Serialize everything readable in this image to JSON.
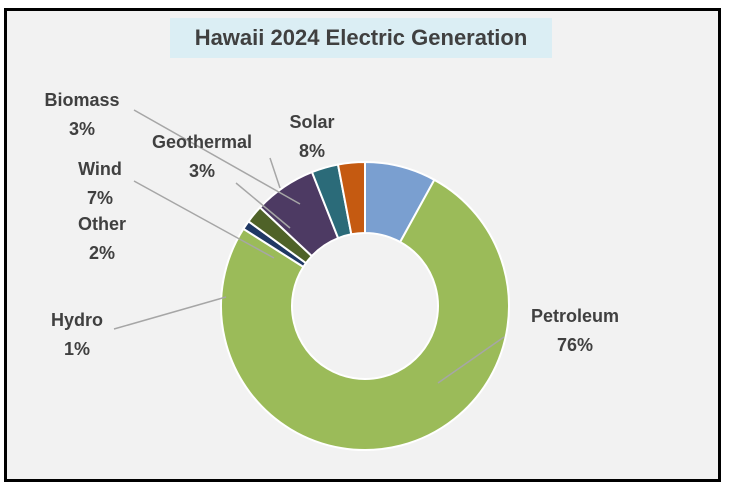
{
  "chart_data": {
    "type": "pie",
    "variant": "donut",
    "title": "Hawaii 2024 Electric Generation",
    "categories": [
      "Solar",
      "Petroleum",
      "Hydro",
      "Other",
      "Wind",
      "Geothermal",
      "Biomass"
    ],
    "values": [
      8,
      76,
      1,
      2,
      7,
      3,
      3
    ],
    "value_labels": [
      "8%",
      "76%",
      "1%",
      "2%",
      "7%",
      "3%",
      "3%"
    ],
    "colors": [
      "#7a9fd0",
      "#9bbb59",
      "#1f3864",
      "#4f6228",
      "#4d3a63",
      "#2b6b79",
      "#c55a11"
    ],
    "legend": "none",
    "data_labels": "outside with leader lines"
  }
}
